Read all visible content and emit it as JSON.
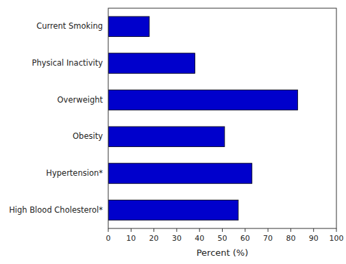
{
  "chart_data": {
    "type": "bar",
    "orientation": "horizontal",
    "categories": [
      "High Blood Cholesterol*",
      "Hypertension*",
      "Obesity",
      "Overweight",
      "Physical Inactivity",
      "Current Smoking"
    ],
    "values": [
      57,
      63,
      51,
      83,
      38,
      18
    ],
    "color": "#0000CC",
    "x_label": "Percent (%)",
    "xlim": [
      0,
      100
    ],
    "xticks": [
      0,
      10,
      20,
      30,
      40,
      50,
      60,
      70,
      80,
      90,
      100
    ],
    "grid": false
  }
}
